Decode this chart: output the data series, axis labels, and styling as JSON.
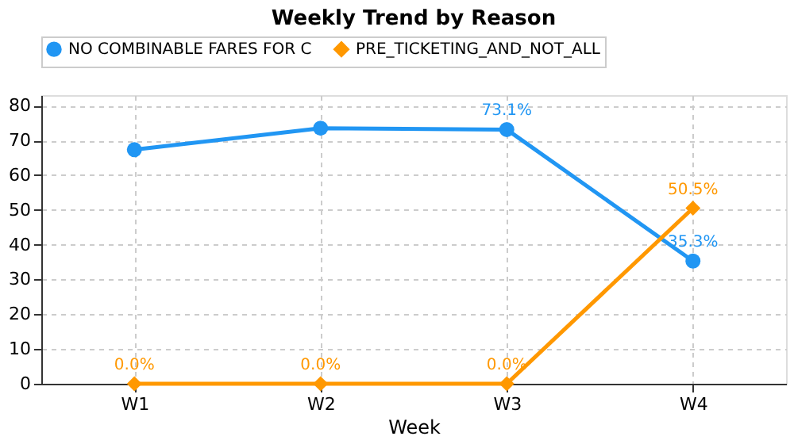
{
  "chart_data": {
    "type": "line",
    "title": "Weekly Trend by Reason",
    "xlabel": "Week",
    "categories": [
      "W1",
      "W2",
      "W3",
      "W4"
    ],
    "series": [
      {
        "name": "NO COMBINABLE FARES FOR C",
        "color": "#2196f3",
        "marker": "circle",
        "values": [
          67.3,
          73.5,
          73.1,
          35.3
        ],
        "value_labels": [
          null,
          null,
          "73.1%",
          "35.3%"
        ]
      },
      {
        "name": "PRE_TICKETING_AND_NOT_ALL",
        "color": "#ff9800",
        "marker": "diamond",
        "values": [
          0.0,
          0.0,
          0.0,
          50.5
        ],
        "value_labels": [
          "0.0%",
          "0.0%",
          "0.0%",
          "50.5%"
        ]
      }
    ],
    "ylim": [
      0,
      83
    ],
    "yticks": [
      0,
      10,
      20,
      30,
      40,
      50,
      60,
      70,
      80
    ],
    "grid": true,
    "legend": "top",
    "line_style": "solid"
  }
}
